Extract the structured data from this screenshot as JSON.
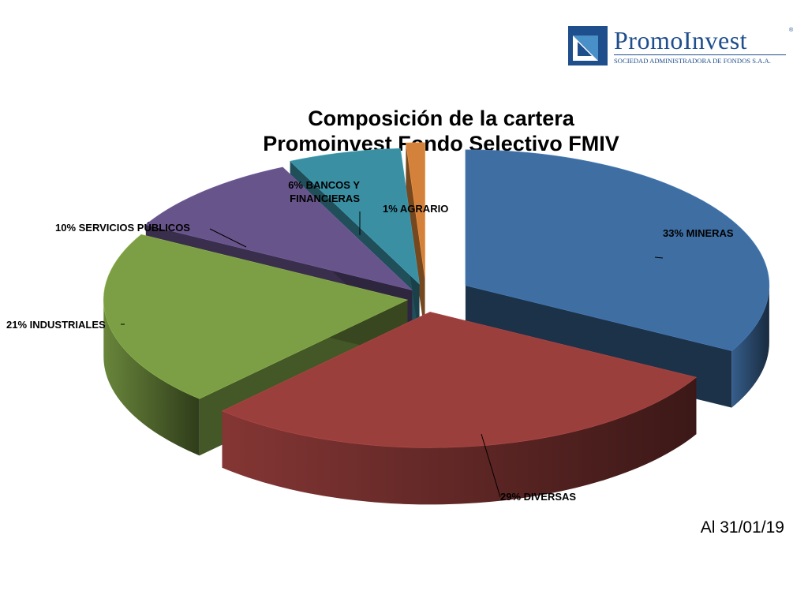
{
  "logo": {
    "name": "PromoInvest",
    "registered_mark": "®",
    "tagline": "SOCIEDAD ADMINISTRADORA DE FONDOS S.A.A.",
    "colors": {
      "primary": "#1f4e8c",
      "accent": "#4a90c8"
    }
  },
  "chart_data": {
    "type": "pie",
    "title": [
      "Composición de la cartera",
      "Promoinvest Fondo Selectivo FMIV"
    ],
    "style": "3d-exploded",
    "slices": [
      {
        "label": "33% MINERAS",
        "value": 33,
        "color": "#3f6ea3"
      },
      {
        "label": "29% DIVERSAS",
        "value": 29,
        "color": "#9b3f3d"
      },
      {
        "label": "21% INDUSTRIALES",
        "value": 21,
        "color": "#7c9e45"
      },
      {
        "label": "10% SERVICIOS PÚBLICOS",
        "value": 10,
        "color": "#67548a"
      },
      {
        "label": "6% BANCOS Y FINANCIERAS",
        "label_lines": [
          "6% BANCOS Y",
          "FINANCIERAS"
        ],
        "value": 6,
        "color": "#3a8fa3"
      },
      {
        "label": "1% AGRARIO",
        "value": 1,
        "color": "#d4823b"
      }
    ]
  },
  "date_label": "Al 31/01/19"
}
